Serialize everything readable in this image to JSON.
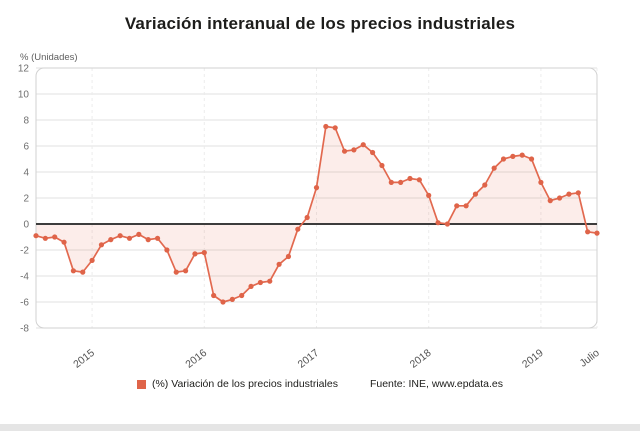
{
  "page": {
    "title": "Variación interanual de los precios industriales",
    "y_axis_unit_label": "% (Unidades)"
  },
  "legend": {
    "series_label": "(%) Variación de los precios industriales",
    "source_label": "Fuente: INE, www.epdata.es"
  },
  "colors": {
    "line": "#e2694f",
    "marker": "#df6449",
    "area_fill": "rgba(232,115,91,0.13)",
    "zero_line": "#3c3c3c",
    "grid": "#e1e1e1",
    "grid_vertical": "#ececec",
    "plot_border": "#d2d2d2",
    "axis_text": "#6f6f6f",
    "tick_text": "#555555"
  },
  "chart_data": {
    "type": "line",
    "title": "Variación interanual de los precios industriales",
    "ylabel": "% (Unidades)",
    "xlabel": "",
    "ylim": [
      -8,
      12
    ],
    "y_ticks": [
      12,
      10,
      8,
      6,
      4,
      2,
      0,
      -2,
      -4,
      -6,
      -8
    ],
    "grid": true,
    "zero_baseline": true,
    "legend_position": "bottom",
    "x_tick_labels": [
      "2015",
      "2016",
      "2017",
      "2018",
      "2019",
      "Julio"
    ],
    "x_tick_indices": [
      6,
      18,
      30,
      42,
      54,
      60
    ],
    "x_range_note": "monthly points, Jul 2014 - Jul 2019",
    "series": [
      {
        "name": "(%) Variación de los precios industriales",
        "values": [
          -0.9,
          -1.1,
          -1.0,
          -1.4,
          -3.6,
          -3.7,
          -2.8,
          -1.6,
          -1.2,
          -0.9,
          -1.1,
          -0.8,
          -1.2,
          -1.1,
          -2.0,
          -3.7,
          -3.6,
          -2.3,
          -2.2,
          -5.5,
          -6.0,
          -5.8,
          -5.5,
          -4.8,
          -4.5,
          -4.4,
          -3.1,
          -2.5,
          -0.4,
          0.5,
          2.8,
          7.5,
          7.4,
          5.6,
          5.7,
          6.1,
          5.5,
          4.5,
          3.2,
          3.2,
          3.5,
          3.4,
          2.2,
          0.1,
          0.0,
          1.4,
          1.4,
          2.3,
          3.0,
          4.3,
          5.0,
          5.2,
          5.3,
          5.0,
          3.2,
          1.8,
          2.0,
          2.3,
          2.4,
          -0.6,
          -0.7
        ]
      }
    ],
    "source": "Fuente: INE, www.epdata.es"
  }
}
